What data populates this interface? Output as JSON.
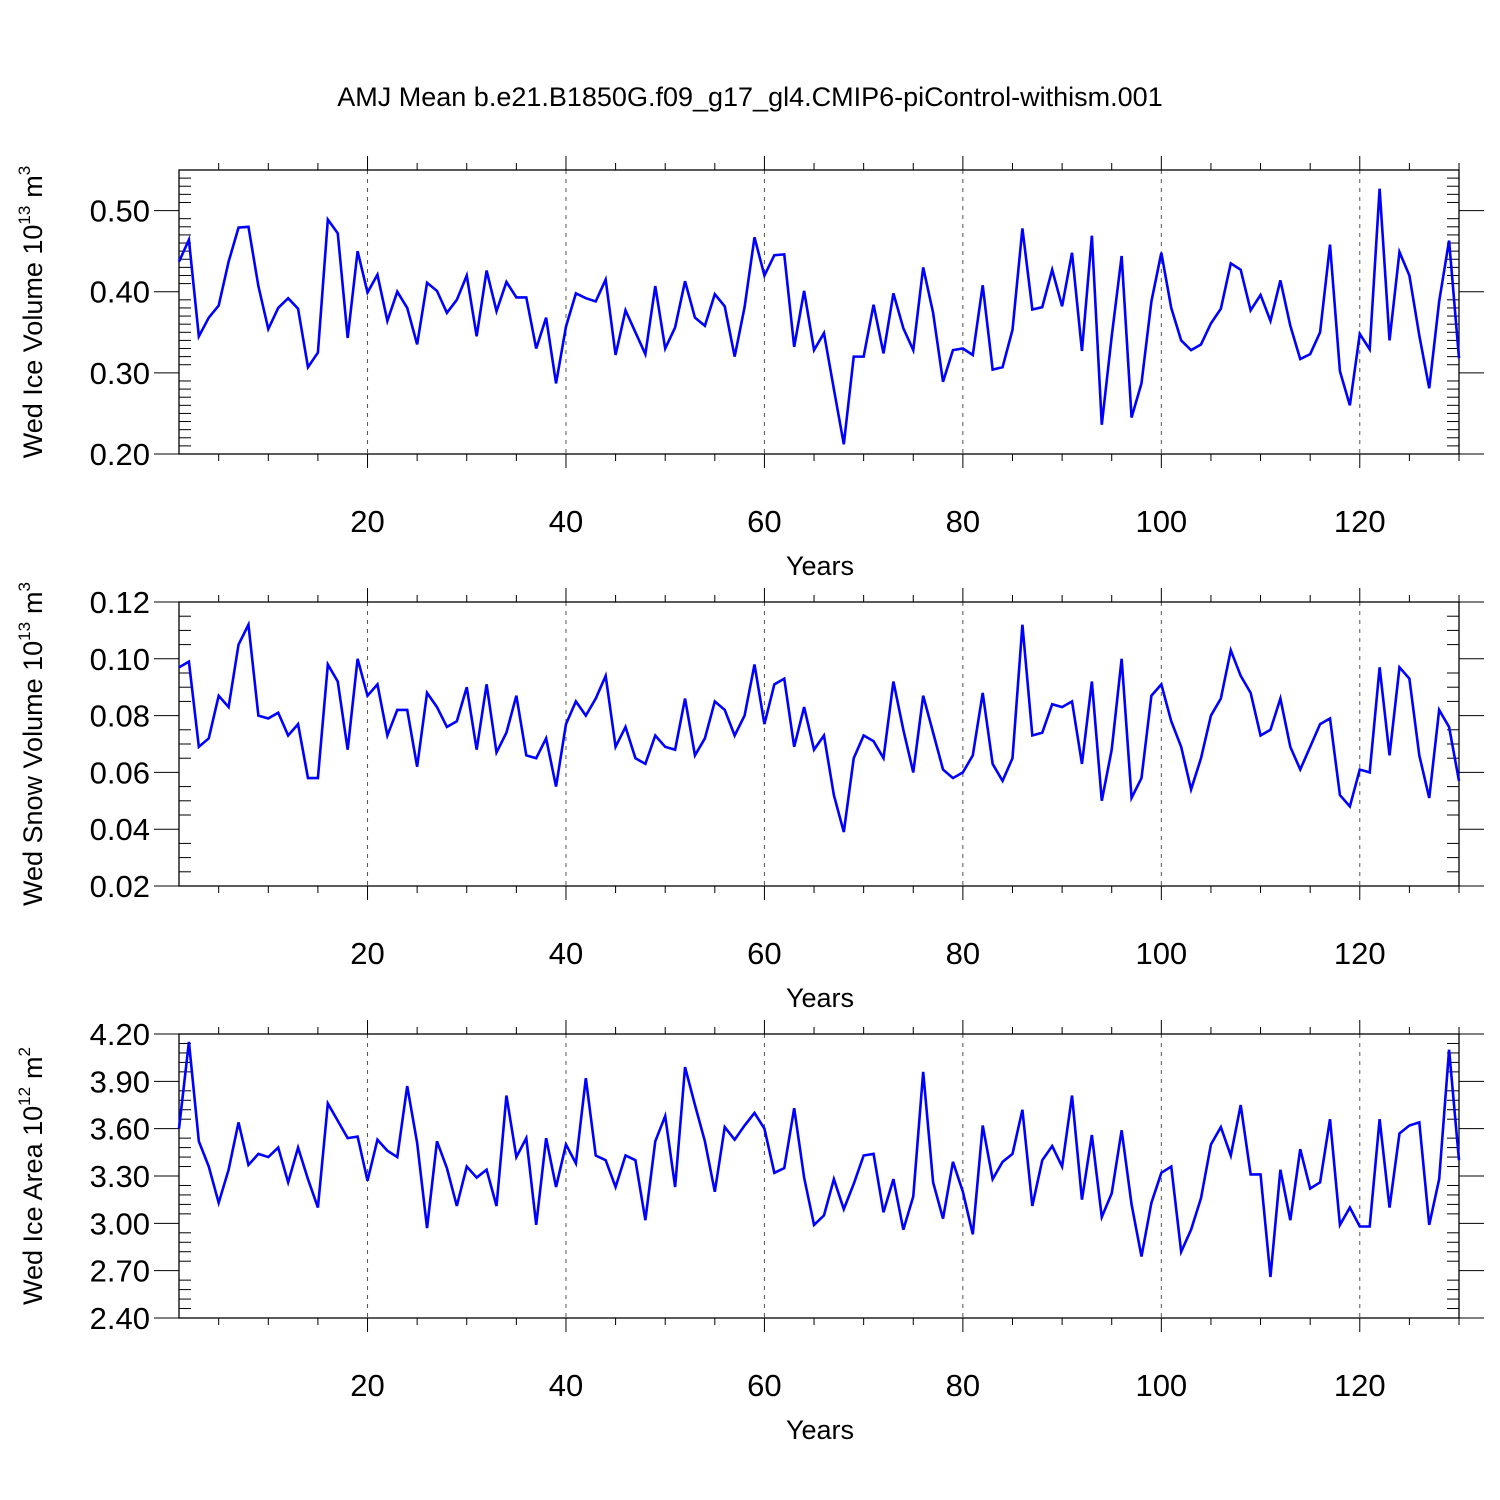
{
  "title": "AMJ Mean b.e21.B1850G.f09_g17_gl4.CMIP6-piControl-withism.001",
  "colors": {
    "line": "#0000ff",
    "axis": "#000000",
    "grid": "#555555"
  },
  "chart_data": [
    {
      "type": "line",
      "title": "AMJ Mean b.e21.B1850G.f09_g17_gl4.CMIP6-piControl-withism.001",
      "xlabel": "Years",
      "ylabel": "Wed Ice Volume 10",
      "ylabel_exp": "13",
      "ylabel_unit": "m",
      "ylabel_unit_exp": "3",
      "xlim": [
        1,
        130
      ],
      "ylim": [
        0.2,
        0.55
      ],
      "xticks": [
        20,
        40,
        60,
        80,
        100,
        120
      ],
      "xtick_labels": [
        "20",
        "40",
        "60",
        "80",
        "100",
        "120"
      ],
      "yticks": [
        0.2,
        0.3,
        0.4,
        0.5
      ],
      "ytick_labels": [
        "0.20",
        "0.30",
        "0.40",
        "0.50"
      ],
      "grid": "vertical dashed at major x ticks",
      "series": [
        {
          "x_start": 1,
          "values": [
            0.437,
            0.464,
            0.345,
            0.368,
            0.383,
            0.437,
            0.479,
            0.48,
            0.407,
            0.354,
            0.38,
            0.392,
            0.379,
            0.307,
            0.325,
            0.489,
            0.472,
            0.343,
            0.45,
            0.399,
            0.421,
            0.364,
            0.4,
            0.38,
            0.335,
            0.411,
            0.401,
            0.374,
            0.39,
            0.42,
            0.345,
            0.426,
            0.376,
            0.412,
            0.393,
            0.393,
            0.33,
            0.368,
            0.287,
            0.357,
            0.398,
            0.392,
            0.388,
            0.415,
            0.322,
            0.377,
            0.35,
            0.323,
            0.407,
            0.33,
            0.356,
            0.413,
            0.368,
            0.358,
            0.397,
            0.382,
            0.32,
            0.381,
            0.467,
            0.42,
            0.445,
            0.446,
            0.332,
            0.401,
            0.328,
            0.349,
            0.28,
            0.212,
            0.32,
            0.32,
            0.384,
            0.324,
            0.398,
            0.355,
            0.328,
            0.43,
            0.374,
            0.289,
            0.328,
            0.33,
            0.322,
            0.408,
            0.304,
            0.307,
            0.353,
            0.478,
            0.378,
            0.381,
            0.427,
            0.382,
            0.448,
            0.327,
            0.469,
            0.236,
            0.345,
            0.444,
            0.245,
            0.287,
            0.388,
            0.448,
            0.38,
            0.34,
            0.328,
            0.335,
            0.361,
            0.379,
            0.435,
            0.427,
            0.377,
            0.396,
            0.364,
            0.414,
            0.358,
            0.317,
            0.323,
            0.35,
            0.458,
            0.302,
            0.26,
            0.348,
            0.329,
            0.527,
            0.34,
            0.449,
            0.42,
            0.346,
            0.281,
            0.388,
            0.463,
            0.318
          ]
        }
      ]
    },
    {
      "type": "line",
      "xlabel": "Years",
      "ylabel": "Wed Snow Volume 10",
      "ylabel_exp": "13",
      "ylabel_unit": "m",
      "ylabel_unit_exp": "3",
      "xlim": [
        1,
        130
      ],
      "ylim": [
        0.02,
        0.12
      ],
      "xticks": [
        20,
        40,
        60,
        80,
        100,
        120
      ],
      "xtick_labels": [
        "20",
        "40",
        "60",
        "80",
        "100",
        "120"
      ],
      "yticks": [
        0.02,
        0.04,
        0.06,
        0.08,
        0.1,
        0.12
      ],
      "ytick_labels": [
        "0.02",
        "0.04",
        "0.06",
        "0.08",
        "0.10",
        "0.12"
      ],
      "grid": "vertical dashed at major x ticks",
      "series": [
        {
          "x_start": 1,
          "values": [
            0.097,
            0.099,
            0.069,
            0.072,
            0.087,
            0.083,
            0.105,
            0.112,
            0.08,
            0.079,
            0.081,
            0.073,
            0.077,
            0.058,
            0.058,
            0.098,
            0.092,
            0.068,
            0.1,
            0.087,
            0.091,
            0.073,
            0.082,
            0.082,
            0.062,
            0.088,
            0.083,
            0.076,
            0.078,
            0.09,
            0.068,
            0.091,
            0.067,
            0.074,
            0.087,
            0.066,
            0.065,
            0.072,
            0.055,
            0.077,
            0.085,
            0.08,
            0.086,
            0.094,
            0.069,
            0.076,
            0.065,
            0.063,
            0.073,
            0.069,
            0.068,
            0.086,
            0.066,
            0.072,
            0.085,
            0.082,
            0.073,
            0.08,
            0.098,
            0.077,
            0.091,
            0.093,
            0.069,
            0.083,
            0.068,
            0.073,
            0.052,
            0.039,
            0.065,
            0.073,
            0.071,
            0.065,
            0.092,
            0.075,
            0.06,
            0.087,
            0.074,
            0.061,
            0.058,
            0.06,
            0.066,
            0.088,
            0.063,
            0.057,
            0.065,
            0.112,
            0.073,
            0.074,
            0.084,
            0.083,
            0.085,
            0.063,
            0.092,
            0.05,
            0.068,
            0.1,
            0.051,
            0.058,
            0.087,
            0.091,
            0.078,
            0.069,
            0.054,
            0.065,
            0.08,
            0.086,
            0.103,
            0.094,
            0.088,
            0.073,
            0.075,
            0.086,
            0.069,
            0.061,
            0.069,
            0.077,
            0.079,
            0.052,
            0.048,
            0.061,
            0.06,
            0.097,
            0.066,
            0.097,
            0.093,
            0.066,
            0.051,
            0.082,
            0.076,
            0.057
          ]
        }
      ]
    },
    {
      "type": "line",
      "xlabel": "Years",
      "ylabel": "Wed Ice Area 10",
      "ylabel_exp": "12",
      "ylabel_unit": "m",
      "ylabel_unit_exp": "2",
      "xlim": [
        1,
        130
      ],
      "ylim": [
        2.4,
        4.2
      ],
      "xticks": [
        20,
        40,
        60,
        80,
        100,
        120
      ],
      "xtick_labels": [
        "20",
        "40",
        "60",
        "80",
        "100",
        "120"
      ],
      "yticks": [
        2.4,
        2.7,
        3.0,
        3.3,
        3.6,
        3.9,
        4.2
      ],
      "ytick_labels": [
        "2.40",
        "2.70",
        "3.00",
        "3.30",
        "3.60",
        "3.90",
        "4.20"
      ],
      "grid": "vertical dashed at major x ticks",
      "series": [
        {
          "x_start": 1,
          "values": [
            3.6,
            4.15,
            3.52,
            3.36,
            3.13,
            3.34,
            3.64,
            3.37,
            3.44,
            3.42,
            3.48,
            3.26,
            3.48,
            3.28,
            3.1,
            3.76,
            3.65,
            3.54,
            3.55,
            3.27,
            3.53,
            3.46,
            3.42,
            3.87,
            3.51,
            2.97,
            3.52,
            3.35,
            3.11,
            3.36,
            3.29,
            3.34,
            3.11,
            3.81,
            3.42,
            3.54,
            2.99,
            3.54,
            3.23,
            3.5,
            3.38,
            3.92,
            3.43,
            3.4,
            3.23,
            3.43,
            3.4,
            3.02,
            3.52,
            3.68,
            3.23,
            3.99,
            3.75,
            3.52,
            3.2,
            3.61,
            3.53,
            3.62,
            3.7,
            3.6,
            3.32,
            3.35,
            3.73,
            3.29,
            2.99,
            3.05,
            3.28,
            3.09,
            3.25,
            3.43,
            3.44,
            3.07,
            3.28,
            2.96,
            3.17,
            3.96,
            3.26,
            3.03,
            3.39,
            3.2,
            2.93,
            3.62,
            3.28,
            3.39,
            3.44,
            3.72,
            3.11,
            3.4,
            3.49,
            3.36,
            3.81,
            3.15,
            3.56,
            3.04,
            3.19,
            3.59,
            3.12,
            2.79,
            3.13,
            3.32,
            3.36,
            2.82,
            2.96,
            3.16,
            3.5,
            3.61,
            3.43,
            3.75,
            3.31,
            3.31,
            2.66,
            3.34,
            3.02,
            3.47,
            3.22,
            3.26,
            3.66,
            2.99,
            3.1,
            2.98,
            2.98,
            3.66,
            3.1,
            3.57,
            3.62,
            3.64,
            2.99,
            3.28,
            4.1,
            3.4
          ]
        }
      ]
    }
  ]
}
